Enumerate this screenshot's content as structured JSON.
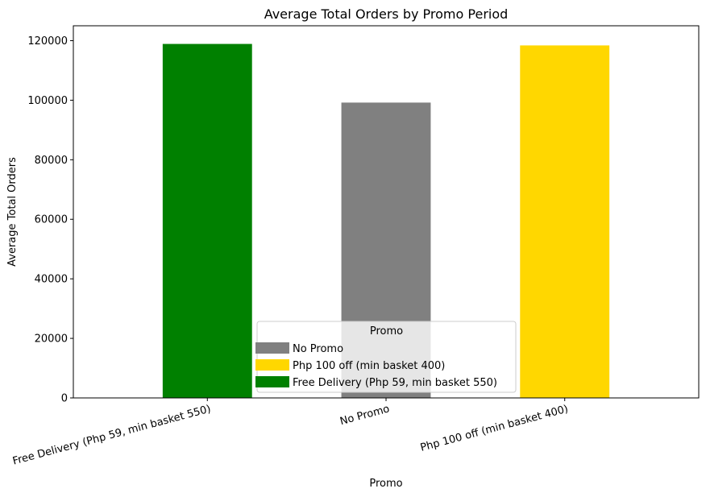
{
  "chart_data": {
    "type": "bar",
    "title": "Average Total Orders by Promo Period",
    "xlabel": "Promo",
    "ylabel": "Average Total Orders",
    "categories": [
      "Free Delivery (Php 59, min basket 550)",
      "No Promo",
      "Php 100 off (min basket 400)"
    ],
    "values": [
      118900,
      99200,
      118400
    ],
    "colors": [
      "#008000",
      "#808080",
      "#ffd700"
    ],
    "ylim": [
      0,
      125000
    ],
    "yticks": [
      0,
      20000,
      40000,
      60000,
      80000,
      100000,
      120000
    ],
    "grid": false,
    "legend": {
      "title": "Promo",
      "placement": "lower-center",
      "entries": [
        {
          "label": "No Promo",
          "color": "#808080"
        },
        {
          "label": "Php 100 off (min basket 400)",
          "color": "#ffd700"
        },
        {
          "label": "Free Delivery (Php 59, min basket 550)",
          "color": "#008000"
        }
      ]
    }
  }
}
